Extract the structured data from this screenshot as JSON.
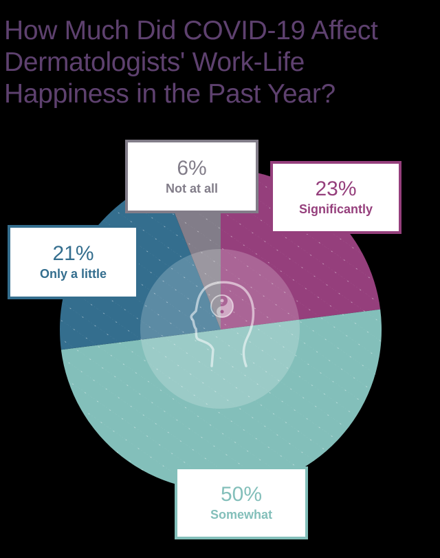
{
  "title": {
    "lines": [
      "How Much Did COVID-19 Affect",
      "Dermatologists' Work-Life",
      "Happiness in the Past Year?"
    ]
  },
  "colors": {
    "title": "#5e416f",
    "significantly": "#953f7c",
    "somewhat": "#83bfba",
    "only_a_little": "#346e8e",
    "not_at_all": "#827d89",
    "background": "#000000"
  },
  "labels": {
    "not_at_all": {
      "pct": "6%",
      "cat": "Not at all"
    },
    "significantly": {
      "pct": "23%",
      "cat": "Significantly"
    },
    "only_a_little": {
      "pct": "21%",
      "cat": "Only a little"
    },
    "somewhat": {
      "pct": "50%",
      "cat": "Somewhat"
    }
  },
  "center_icon": "head-with-yin-yang-icon",
  "chart_data": {
    "type": "pie",
    "title": "How Much Did COVID-19 Affect Dermatologists' Work-Life Happiness in the Past Year?",
    "categories": [
      "Significantly",
      "Somewhat",
      "Only a little",
      "Not at all"
    ],
    "values": [
      23,
      50,
      21,
      6
    ],
    "unit": "%",
    "colors": [
      "#953f7c",
      "#83bfba",
      "#346e8e",
      "#827d89"
    ],
    "start_angle": "12 o'clock, clockwise",
    "legend": "callout boxes per slice"
  }
}
